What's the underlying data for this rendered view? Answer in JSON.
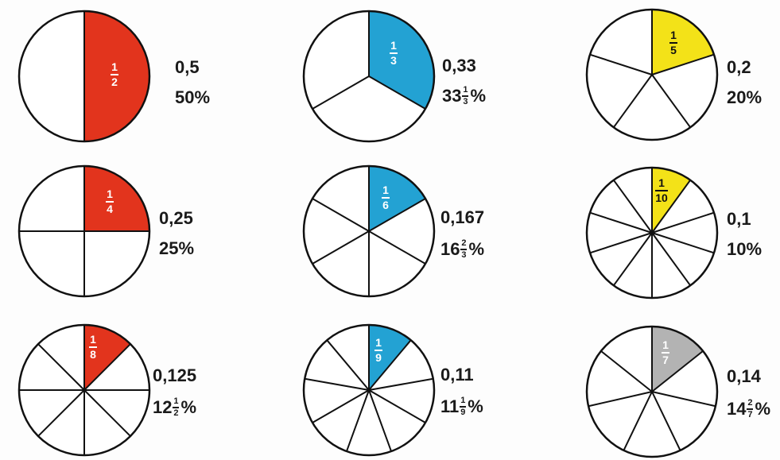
{
  "colors": {
    "red": "#e2341d",
    "blue": "#23a2d3",
    "yellow": "#f3e218",
    "gray": "#b3b3b3"
  },
  "pies": [
    {
      "id": "half",
      "denominator": 2,
      "color": "red",
      "fraction": {
        "numerator": "1",
        "denominator": "2"
      },
      "decimal": "0,5",
      "percent": {
        "text": "50%"
      }
    },
    {
      "id": "third",
      "denominator": 3,
      "color": "blue",
      "fraction": {
        "numerator": "1",
        "denominator": "3"
      },
      "decimal": "0,33",
      "percent": {
        "whole": "33",
        "num": "1",
        "den": "3",
        "sign": "%"
      }
    },
    {
      "id": "fifth",
      "denominator": 5,
      "color": "yellow",
      "fraction": {
        "numerator": "1",
        "denominator": "5"
      },
      "decimal": "0,2",
      "percent": {
        "text": "20%"
      }
    },
    {
      "id": "quarter",
      "denominator": 4,
      "color": "red",
      "fraction": {
        "numerator": "1",
        "denominator": "4"
      },
      "decimal": "0,25",
      "percent": {
        "text": "25%"
      }
    },
    {
      "id": "sixth",
      "denominator": 6,
      "color": "blue",
      "fraction": {
        "numerator": "1",
        "denominator": "6"
      },
      "decimal": "0,167",
      "percent": {
        "whole": "16",
        "num": "2",
        "den": "3",
        "sign": "%"
      }
    },
    {
      "id": "tenth",
      "denominator": 10,
      "color": "yellow",
      "fraction": {
        "numerator": "1",
        "denominator": "10"
      },
      "decimal": "0,1",
      "percent": {
        "text": "10%"
      }
    },
    {
      "id": "eighth",
      "denominator": 8,
      "color": "red",
      "fraction": {
        "numerator": "1",
        "denominator": "8"
      },
      "decimal": "0,125",
      "percent": {
        "whole": "12",
        "num": "1",
        "den": "2",
        "sign": "%"
      }
    },
    {
      "id": "ninth",
      "denominator": 9,
      "color": "blue",
      "fraction": {
        "numerator": "1",
        "denominator": "9"
      },
      "decimal": "0,11",
      "percent": {
        "whole": "11",
        "num": "1",
        "den": "9",
        "sign": "%"
      }
    },
    {
      "id": "seventh",
      "denominator": 7,
      "color": "gray",
      "fraction": {
        "numerator": "1",
        "denominator": "7"
      },
      "decimal": "0,14",
      "percent": {
        "whole": "14",
        "num": "2",
        "den": "7",
        "sign": "%"
      }
    }
  ]
}
